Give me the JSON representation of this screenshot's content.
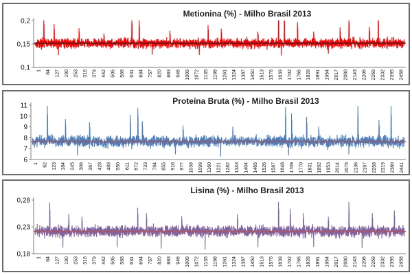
{
  "chart_data": [
    {
      "type": "line",
      "title": "Metionina (%) - Milho Brasil 2013",
      "color": "#ff0000",
      "mean_color": "#1a1a1a",
      "x_ticks": [
        "1",
        "64",
        "127",
        "190",
        "253",
        "316",
        "379",
        "442",
        "505",
        "568",
        "631",
        "694",
        "757",
        "820",
        "883",
        "946",
        "1009",
        "1072",
        "1135",
        "1198",
        "1261",
        "1324",
        "1387",
        "1450",
        "1513",
        "1576",
        "1639",
        "1702",
        "1765",
        "1828",
        "1891",
        "1954",
        "2017",
        "2080",
        "2143",
        "2206",
        "2269",
        "2332",
        "2395",
        "2458"
      ],
      "y_ticks": [
        "0,2",
        "0,15",
        "0,1"
      ],
      "ylim": [
        0.1,
        0.2
      ],
      "mean": 0.152,
      "n_points": 2520,
      "band": [
        0.137,
        0.166
      ],
      "spikes": [
        [
          60,
          0.205
        ],
        [
          130,
          0.192
        ],
        [
          300,
          0.183
        ],
        [
          470,
          0.172
        ],
        [
          660,
          0.208
        ],
        [
          710,
          0.2
        ],
        [
          920,
          0.178
        ],
        [
          1180,
          0.19
        ],
        [
          1270,
          0.182
        ],
        [
          1520,
          0.176
        ],
        [
          1660,
          0.218
        ],
        [
          1700,
          0.215
        ],
        [
          1790,
          0.196
        ],
        [
          1900,
          0.176
        ],
        [
          2080,
          0.185
        ],
        [
          2140,
          0.21
        ],
        [
          2280,
          0.186
        ],
        [
          2340,
          0.22
        ]
      ],
      "dips": [
        [
          160,
          0.127
        ],
        [
          800,
          0.128
        ],
        [
          1120,
          0.127
        ],
        [
          1680,
          0.126
        ],
        [
          2000,
          0.13
        ]
      ]
    },
    {
      "type": "line",
      "title": "Proteína Bruta (%) - Milho Brasil 2013",
      "color": "#4a7ebb",
      "mean_color": "#be4b48",
      "x_ticks": [
        "1",
        "62",
        "123",
        "184",
        "245",
        "306",
        "367",
        "428",
        "489",
        "550",
        "611",
        "672",
        "733",
        "794",
        "855",
        "916",
        "977",
        "1038",
        "1099",
        "1160",
        "1221",
        "1282",
        "1343",
        "1404",
        "1465",
        "1526",
        "1587",
        "1648",
        "1709",
        "1770",
        "1831",
        "1892",
        "1953",
        "2014",
        "2075",
        "2136",
        "2197",
        "2258",
        "2319",
        "2380",
        "2441"
      ],
      "y_ticks": [
        "11",
        "10",
        "9",
        "8",
        "7",
        "6"
      ],
      "ylim": [
        6,
        11
      ],
      "mean": 7.65,
      "n_points": 2470,
      "band": [
        6.9,
        8.4
      ],
      "spikes": [
        [
          100,
          10.9
        ],
        [
          220,
          9.7
        ],
        [
          380,
          9.4
        ],
        [
          650,
          10.1
        ],
        [
          700,
          10.7
        ],
        [
          730,
          9.5
        ],
        [
          1000,
          9.1
        ],
        [
          1330,
          9.0
        ],
        [
          1680,
          10.8
        ],
        [
          1720,
          10.2
        ],
        [
          1820,
          9.9
        ],
        [
          1900,
          9.0
        ],
        [
          2160,
          10.9
        ],
        [
          2300,
          9.6
        ],
        [
          2380,
          10.9
        ]
      ],
      "dips": [
        [
          300,
          6.4
        ],
        [
          950,
          6.5
        ],
        [
          1250,
          6.3
        ],
        [
          1700,
          6.4
        ],
        [
          2100,
          6.5
        ]
      ]
    },
    {
      "type": "line",
      "title": "Lisina (%) - Milho Brasil 2013",
      "color": "#8064a2",
      "mean_color": "#c0504d",
      "x_ticks": [
        "1",
        "64",
        "127",
        "190",
        "253",
        "316",
        "379",
        "442",
        "505",
        "568",
        "631",
        "694",
        "757",
        "820",
        "883",
        "946",
        "1009",
        "1072",
        "1135",
        "1198",
        "1261",
        "1324",
        "1387",
        "1450",
        "1513",
        "1576",
        "1639",
        "1702",
        "1765",
        "1828",
        "1891",
        "1954",
        "2017",
        "2080",
        "2143",
        "2206",
        "2269",
        "2332",
        "2395",
        "2458"
      ],
      "y_ticks": [
        "0,28",
        "0,23",
        "0,18"
      ],
      "ylim": [
        0.18,
        0.3
      ],
      "mean": 0.23,
      "n_points": 2520,
      "band": [
        0.212,
        0.248
      ],
      "spikes": [
        [
          100,
          0.294
        ],
        [
          230,
          0.268
        ],
        [
          320,
          0.262
        ],
        [
          700,
          0.282
        ],
        [
          760,
          0.27
        ],
        [
          1000,
          0.263
        ],
        [
          1380,
          0.268
        ],
        [
          1660,
          0.295
        ],
        [
          1740,
          0.28
        ],
        [
          1830,
          0.27
        ],
        [
          2000,
          0.262
        ],
        [
          2140,
          0.295
        ],
        [
          2300,
          0.27
        ],
        [
          2450,
          0.276
        ]
      ],
      "dips": [
        [
          190,
          0.194
        ],
        [
          560,
          0.195
        ],
        [
          860,
          0.192
        ],
        [
          1160,
          0.19
        ],
        [
          1520,
          0.195
        ],
        [
          1900,
          0.196
        ],
        [
          2230,
          0.193
        ]
      ]
    }
  ]
}
